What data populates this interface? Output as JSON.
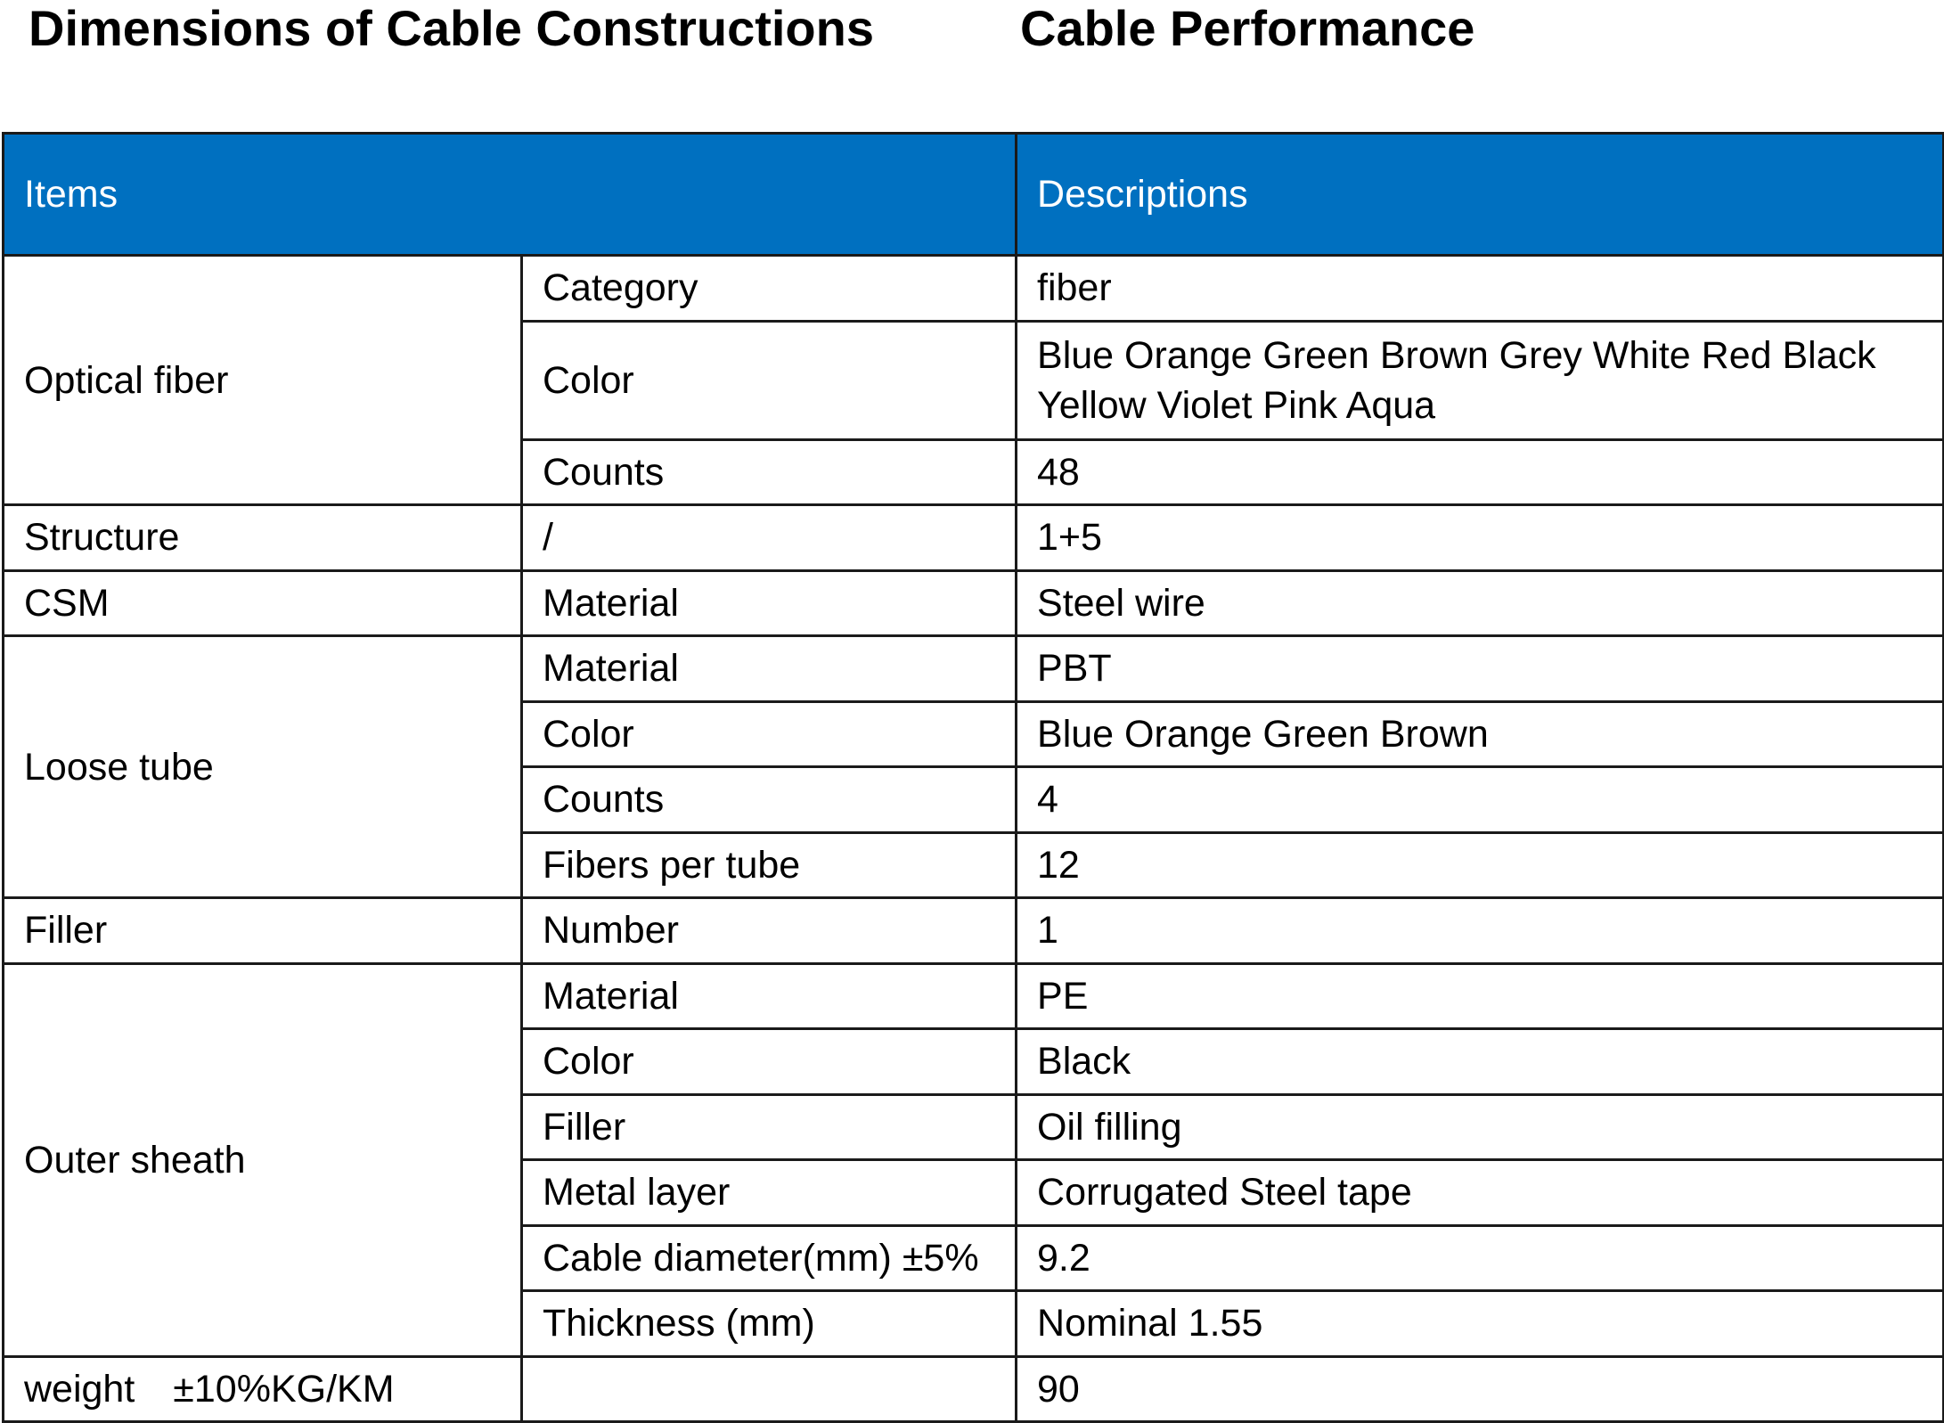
{
  "titles": {
    "left": "Dimensions of Cable Constructions",
    "right": "Cable Performance"
  },
  "table": {
    "header": {
      "items": "Items",
      "descriptions": "Descriptions"
    },
    "groups": {
      "optical_fiber": "Optical fiber",
      "structure": "Structure",
      "csm": "CSM",
      "loose_tube": "Loose tube",
      "filler": "Filler",
      "outer_sheath": "Outer sheath",
      "weight": "weight　±10%KG/KM"
    },
    "rows": [
      {
        "item": "Category",
        "value": "fiber"
      },
      {
        "item": "Color",
        "value": "Blue Orange Green Brown Grey White Red Black Yellow Violet Pink Aqua"
      },
      {
        "item": "Counts",
        "value": "48"
      },
      {
        "item": "/",
        "value": "1+5"
      },
      {
        "item": "Material",
        "value": "Steel wire"
      },
      {
        "item": "Material",
        "value": "PBT"
      },
      {
        "item": "Color",
        "value": "Blue Orange Green Brown"
      },
      {
        "item": "Counts",
        "value": "4"
      },
      {
        "item": "Fibers per tube",
        "value": "12"
      },
      {
        "item": "Number",
        "value": "1"
      },
      {
        "item": "Material",
        "value": "PE"
      },
      {
        "item": "Color",
        "value": "Black"
      },
      {
        "item": "Filler",
        "value": "Oil filling"
      },
      {
        "item": "Metal layer",
        "value": "Corrugated Steel tape"
      },
      {
        "item": "Cable diameter(mm) ±5%",
        "value": "9.2"
      },
      {
        "item": "Thickness (mm)",
        "value": "Nominal 1.55"
      },
      {
        "item": "",
        "value": "90"
      }
    ]
  }
}
